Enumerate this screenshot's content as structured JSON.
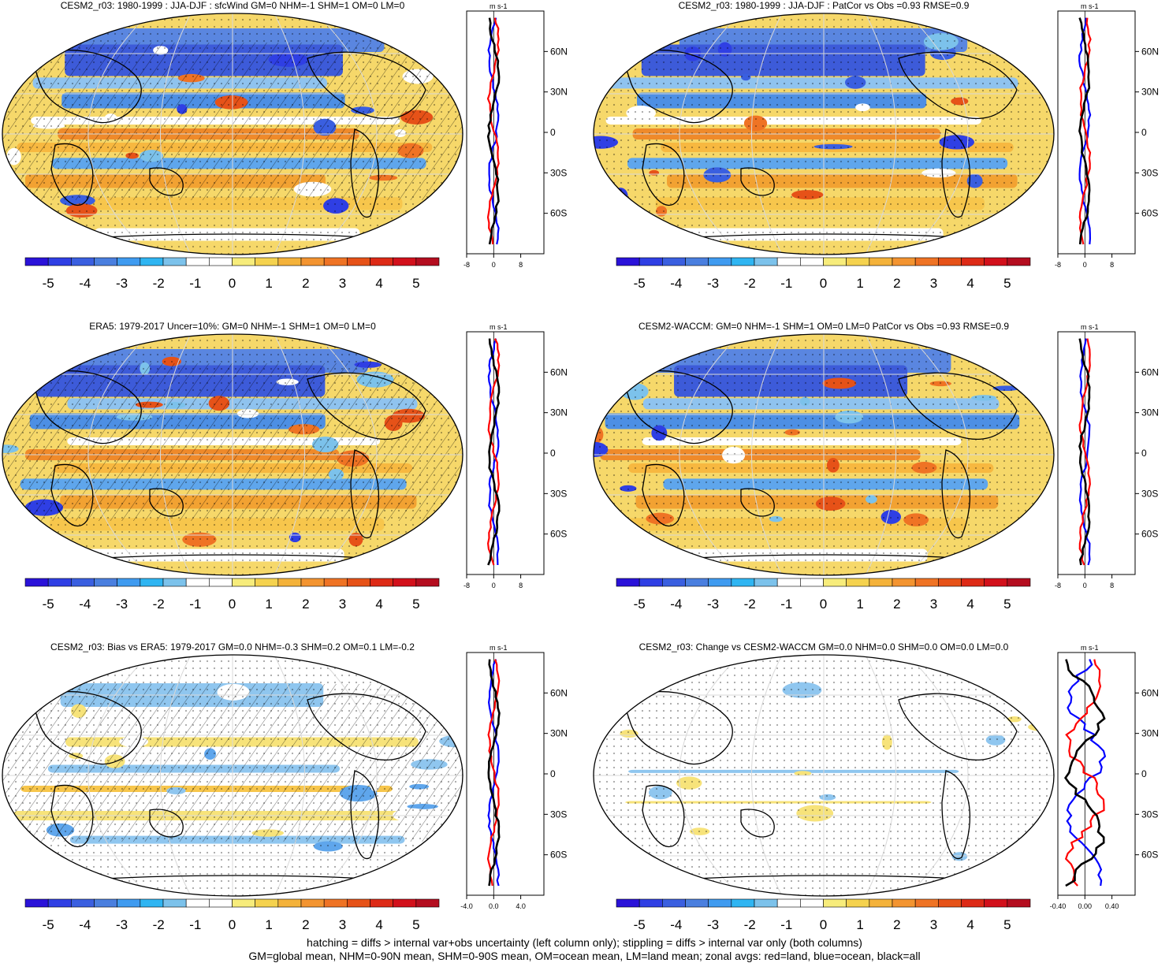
{
  "colorbar": {
    "labels": [
      "-5",
      "-4",
      "-3",
      "-2",
      "-1",
      "0",
      "1",
      "2",
      "3",
      "4",
      "5"
    ],
    "colors": [
      "#2a12d9",
      "#2f3fe4",
      "#3a5fe0",
      "#4a7fdf",
      "#3f9bf0",
      "#2fb5f2",
      "#7cc2eb",
      "#ffffff",
      "#ffffff",
      "#f7ec7b",
      "#f5d24e",
      "#f4b23a",
      "#f39430",
      "#ef7324",
      "#e65218",
      "#dd2a16",
      "#d2101b",
      "#b40d1f"
    ]
  },
  "zonal": {
    "unit": "m s-1",
    "lat_labels": [
      "60N",
      "30N",
      "0",
      "30S",
      "60S"
    ],
    "lat_values": [
      60,
      30,
      0,
      -30,
      -60
    ],
    "line_colors": {
      "land": "#ff0000",
      "ocean": "#0000ff",
      "all": "#000000"
    }
  },
  "panels": [
    {
      "title": "CESM2_r03: 1980-1999 : JJA-DJF : sfcWind GM=0 NHM=-1 SHM=1 OM=0 LM=0",
      "zonal_ticks": [
        "-8",
        "0",
        "8"
      ],
      "xlim": [
        -8,
        8
      ],
      "scheme": "clim",
      "hatch": true
    },
    {
      "title": "CESM2_r03: 1980-1999 : JJA-DJF : PatCor vs Obs =0.93 RMSE=0.9",
      "zonal_ticks": [
        "-8",
        "0",
        "8"
      ],
      "xlim": [
        -8,
        8
      ],
      "scheme": "clim",
      "hatch": false
    },
    {
      "title": "ERA5: 1979-2017 Uncer=10%: GM=0 NHM=-1 SHM=1 OM=0 LM=0",
      "zonal_ticks": [
        "-8",
        "0",
        "8"
      ],
      "xlim": [
        -8,
        8
      ],
      "scheme": "clim",
      "hatch": true
    },
    {
      "title": "CESM2-WACCM: GM=0 NHM=-1 SHM=1 OM=0 LM=0 PatCor vs Obs =0.93 RMSE=0.9",
      "zonal_ticks": [
        "-8",
        "0",
        "8"
      ],
      "xlim": [
        -8,
        8
      ],
      "scheme": "clim",
      "hatch": false
    },
    {
      "title": "CESM2_r03: Bias vs ERA5: 1979-2017 GM=0.0 NHM=-0.3 SHM=0.2 OM=0.1 LM=-0.2",
      "zonal_ticks": [
        "-4.0",
        "0.0",
        "4.0"
      ],
      "xlim": [
        -4,
        4
      ],
      "scheme": "bias",
      "hatch": true
    },
    {
      "title": "CESM2_r03: Change vs CESM2-WACCM GM=0.0 NHM=0.0 SHM=0.0 OM=0.0 LM=0.0",
      "zonal_ticks": [
        "-0.40",
        "0.00",
        "0.40"
      ],
      "xlim": [
        -0.4,
        0.4
      ],
      "scheme": "change",
      "hatch": false
    }
  ],
  "footer": {
    "line1": "hatching = diffs > internal var+obs uncertainty (left column only); stippling = diffs > internal var only (both columns)",
    "line2": "GM=global mean, NHM=0-90N mean, SHM=0-90S mean, OM=ocean mean, LM=land mean; zonal avgs: red=land, blue=ocean, black=all"
  }
}
